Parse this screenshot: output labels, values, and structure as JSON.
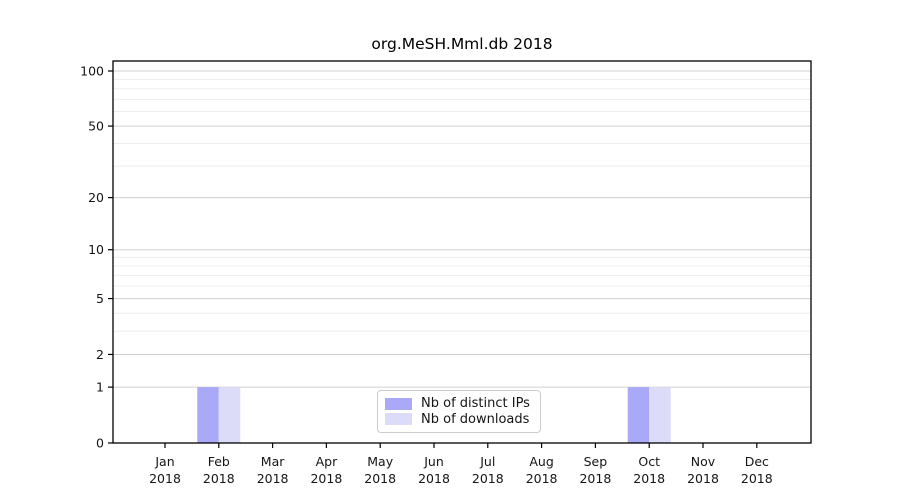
{
  "chart_data": {
    "type": "bar",
    "title": "org.MeSH.Mml.db 2018",
    "categories": [
      "Jan",
      "Feb",
      "Mar",
      "Apr",
      "May",
      "Jun",
      "Jul",
      "Aug",
      "Sep",
      "Oct",
      "Nov",
      "Dec"
    ],
    "category_year": "2018",
    "series": [
      {
        "name": "Nb of distinct IPs",
        "color": "#a9a9f8",
        "values": [
          0,
          1,
          0,
          0,
          0,
          0,
          0,
          0,
          0,
          1,
          0,
          0
        ]
      },
      {
        "name": "Nb of downloads",
        "color": "#dcdcf8",
        "values": [
          0,
          1,
          0,
          0,
          0,
          0,
          0,
          0,
          0,
          1,
          0,
          0
        ]
      }
    ],
    "xlabel": "",
    "ylabel": "",
    "y_scale": "log1p",
    "ylim": [
      0,
      113
    ],
    "y_ticks": [
      0,
      1,
      2,
      5,
      10,
      20,
      50,
      100
    ],
    "y_minor_gridlines": [
      3,
      4,
      6,
      7,
      8,
      9,
      30,
      40,
      60,
      70,
      80,
      90
    ],
    "grid": "horizontal-only",
    "legend_position": "lower-center-inside",
    "colors": {
      "axis": "#000000",
      "tick_label": "#151515",
      "grid_major": "#d0d0d0",
      "grid_minor": "#ededed",
      "background": "#ffffff"
    }
  }
}
